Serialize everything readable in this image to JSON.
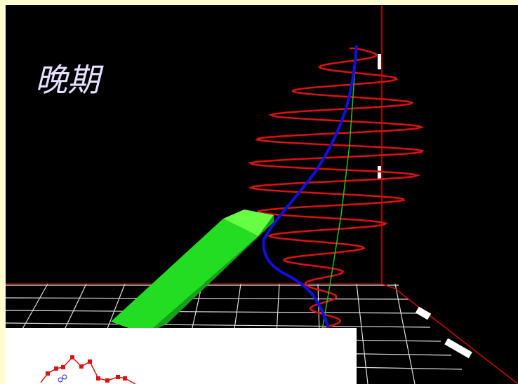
{
  "title": "晚期"
}
